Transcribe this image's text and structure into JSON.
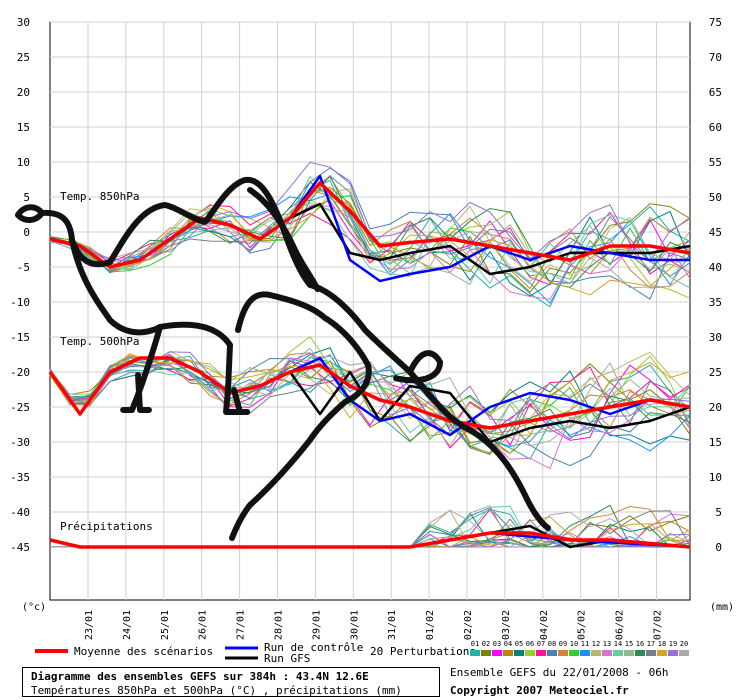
{
  "chart_data": {
    "type": "line",
    "left_axis": {
      "unit": "(°c)",
      "ticks": [
        30,
        25,
        20,
        15,
        10,
        5,
        0,
        -5,
        -10,
        -15,
        -20,
        -25,
        -30,
        -35,
        -40,
        -45
      ]
    },
    "right_axis": {
      "unit": "(mm)",
      "ticks": [
        75,
        70,
        65,
        60,
        55,
        50,
        45,
        40,
        35,
        30,
        25,
        20,
        15,
        10,
        5,
        0
      ]
    },
    "x_ticks": [
      "23/01",
      "24/01",
      "25/01",
      "26/01",
      "27/01",
      "28/01",
      "29/01",
      "30/01",
      "31/01",
      "01/02",
      "02/02",
      "03/02",
      "04/02",
      "05/02",
      "06/02",
      "07/02"
    ],
    "x_range": [
      0,
      64
    ],
    "left_range": [
      -45,
      30
    ],
    "panel_labels": {
      "t850": "Temp. 850hPa",
      "t500": "Temp. 500hPa",
      "precip": "Précipitations"
    },
    "series": [
      {
        "name": "Moyenne des scénarios",
        "color": "#ff0000",
        "width": 3.5,
        "t850": [
          [
            0,
            -1
          ],
          [
            3,
            -2
          ],
          [
            6,
            -5
          ],
          [
            9,
            -4
          ],
          [
            12,
            -1
          ],
          [
            15,
            2
          ],
          [
            18,
            1
          ],
          [
            21,
            -1
          ],
          [
            24,
            2
          ],
          [
            27,
            7
          ],
          [
            30,
            3
          ],
          [
            33,
            -2
          ],
          [
            36,
            -1.5
          ],
          [
            40,
            -1
          ],
          [
            44,
            -2
          ],
          [
            48,
            -3
          ],
          [
            52,
            -4
          ],
          [
            56,
            -2
          ],
          [
            60,
            -2
          ],
          [
            64,
            -3
          ]
        ],
        "t500": [
          [
            0,
            -20
          ],
          [
            3,
            -26
          ],
          [
            6,
            -20
          ],
          [
            9,
            -18
          ],
          [
            12,
            -18
          ],
          [
            15,
            -20
          ],
          [
            18,
            -23
          ],
          [
            21,
            -22
          ],
          [
            24,
            -20
          ],
          [
            27,
            -19
          ],
          [
            30,
            -22
          ],
          [
            33,
            -24
          ],
          [
            36,
            -25
          ],
          [
            40,
            -27
          ],
          [
            44,
            -28
          ],
          [
            48,
            -27
          ],
          [
            52,
            -26
          ],
          [
            56,
            -25
          ],
          [
            60,
            -24
          ],
          [
            64,
            -25
          ]
        ],
        "precip": [
          [
            0,
            -44
          ],
          [
            3,
            -45
          ],
          [
            12,
            -45
          ],
          [
            24,
            -45
          ],
          [
            36,
            -45
          ],
          [
            40,
            -44
          ],
          [
            44,
            -43
          ],
          [
            48,
            -43
          ],
          [
            52,
            -44
          ],
          [
            56,
            -44
          ],
          [
            64,
            -45
          ]
        ]
      },
      {
        "name": "Run de contrôle",
        "color": "#0000ff",
        "width": 2.5,
        "t850": [
          [
            0,
            -1
          ],
          [
            3,
            -2
          ],
          [
            6,
            -5
          ],
          [
            9,
            -4
          ],
          [
            12,
            -1
          ],
          [
            15,
            2
          ],
          [
            18,
            1
          ],
          [
            21,
            -1
          ],
          [
            24,
            2
          ],
          [
            27,
            8
          ],
          [
            30,
            -4
          ],
          [
            33,
            -7
          ],
          [
            36,
            -6
          ],
          [
            40,
            -5
          ],
          [
            44,
            -2
          ],
          [
            48,
            -4
          ],
          [
            52,
            -2
          ],
          [
            56,
            -3
          ],
          [
            60,
            -4
          ],
          [
            64,
            -4
          ]
        ],
        "t500": [
          [
            0,
            -20
          ],
          [
            3,
            -26
          ],
          [
            6,
            -20
          ],
          [
            9,
            -18
          ],
          [
            12,
            -18
          ],
          [
            15,
            -20
          ],
          [
            18,
            -23
          ],
          [
            21,
            -22
          ],
          [
            24,
            -20
          ],
          [
            27,
            -18
          ],
          [
            30,
            -24
          ],
          [
            33,
            -27
          ],
          [
            36,
            -26
          ],
          [
            40,
            -29
          ],
          [
            44,
            -25
          ],
          [
            48,
            -23
          ],
          [
            52,
            -24
          ],
          [
            56,
            -26
          ],
          [
            60,
            -24
          ],
          [
            64,
            -25
          ]
        ],
        "precip": [
          [
            0,
            -44
          ],
          [
            3,
            -45
          ],
          [
            36,
            -45
          ],
          [
            44,
            -43
          ],
          [
            52,
            -44
          ],
          [
            64,
            -45
          ]
        ]
      },
      {
        "name": "Run GFS",
        "color": "#000000",
        "width": 2.5,
        "t850": [
          [
            0,
            -1
          ],
          [
            3,
            -2
          ],
          [
            6,
            -5
          ],
          [
            9,
            -4
          ],
          [
            12,
            -1
          ],
          [
            15,
            2
          ],
          [
            18,
            1
          ],
          [
            21,
            -1
          ],
          [
            24,
            2
          ],
          [
            27,
            4
          ],
          [
            30,
            -3
          ],
          [
            33,
            -4
          ],
          [
            36,
            -3
          ],
          [
            40,
            -2
          ],
          [
            44,
            -6
          ],
          [
            48,
            -5
          ],
          [
            52,
            -3
          ],
          [
            56,
            -3
          ],
          [
            60,
            -3
          ],
          [
            64,
            -2
          ]
        ],
        "t500": [
          [
            0,
            -20
          ],
          [
            3,
            -26
          ],
          [
            6,
            -20
          ],
          [
            9,
            -18
          ],
          [
            12,
            -18
          ],
          [
            15,
            -20
          ],
          [
            18,
            -23
          ],
          [
            21,
            -22
          ],
          [
            24,
            -20
          ],
          [
            27,
            -26
          ],
          [
            30,
            -20
          ],
          [
            33,
            -27
          ],
          [
            36,
            -22
          ],
          [
            40,
            -23
          ],
          [
            44,
            -30
          ],
          [
            48,
            -28
          ],
          [
            52,
            -27
          ],
          [
            56,
            -28
          ],
          [
            60,
            -27
          ],
          [
            64,
            -25
          ]
        ],
        "precip": [
          [
            0,
            -44
          ],
          [
            3,
            -45
          ],
          [
            36,
            -45
          ],
          [
            40,
            -44
          ],
          [
            44,
            -43
          ],
          [
            48,
            -42
          ],
          [
            52,
            -45
          ],
          [
            56,
            -44
          ],
          [
            64,
            -45
          ]
        ]
      }
    ],
    "legend": {
      "mean": "Moyenne des scénarios",
      "control": "Run de contrôle",
      "gfs": "Run GFS",
      "perturbations": "20 Perturbations",
      "pert_numbers": [
        "01",
        "02",
        "03",
        "04",
        "05",
        "06",
        "07",
        "08",
        "09",
        "10",
        "11",
        "12",
        "13",
        "14",
        "15",
        "16",
        "17",
        "18",
        "19",
        "20"
      ],
      "pert_colors": [
        "#20b2aa",
        "#808000",
        "#ff00ff",
        "#b8860b",
        "#008080",
        "#9acd32",
        "#ff1493",
        "#4682b4",
        "#cd853f",
        "#32cd32",
        "#1e90ff",
        "#bdb76b",
        "#da70d6",
        "#66cdaa",
        "#8fbc8f",
        "#2e8b57",
        "#708090",
        "#daa520",
        "#9370db",
        "#a9a9a9"
      ]
    },
    "title_line1": "Diagramme des ensembles GEFS sur 384h : 43.4N 12.6E",
    "title_line2": "Températures 850hPa et 500hPa (°C) , précipitations (mm)",
    "ensemble_info": "Ensemble GEFS du 22/01/2008 - 06h",
    "copyright": "Copyright 2007 Meteociel.fr"
  }
}
